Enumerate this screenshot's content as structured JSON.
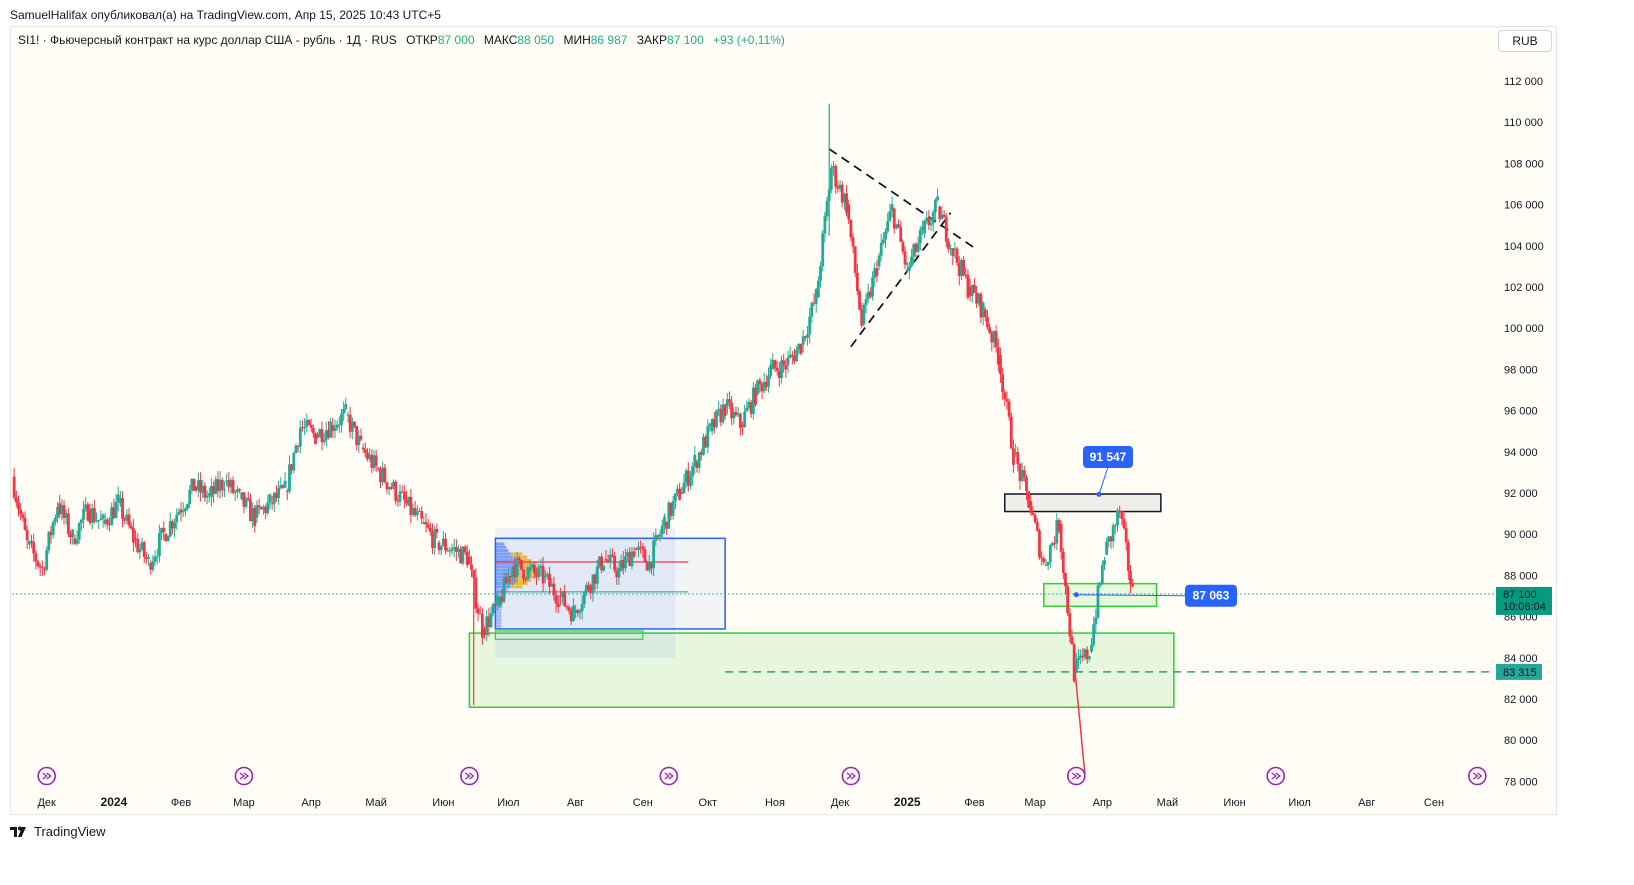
{
  "header": {
    "caption": "SamuelHalifax опубликовал(а) на TradingView.com, Апр 15, 2025 10:43 UTC+5"
  },
  "legend": {
    "symbol": "SI1! · Фьючерсный контракт на курс доллар США - рубль · 1Д · RUS",
    "open_label": "ОТКР",
    "open_value": "87 000",
    "high_label": "МАКС",
    "high_value": "88 050",
    "low_label": "МИН",
    "low_value": "86 987",
    "close_label": "ЗАКР",
    "close_value": "87 100",
    "change": "+93 (+0,11%)"
  },
  "currency": "RUB",
  "brand": "TradingView",
  "colors": {
    "up": "#22ab94",
    "down": "#f23645",
    "blue_label": "#2962ff",
    "green_zone": "#2fd12f",
    "dashed_level": "#2a9d8f"
  },
  "chart_data": {
    "type": "candlestick",
    "ylim": [
      77500,
      113000
    ],
    "y_ticks": [
      78000,
      80000,
      82000,
      84000,
      86000,
      88000,
      90000,
      92000,
      94000,
      96000,
      98000,
      100000,
      102000,
      104000,
      106000,
      108000,
      110000,
      112000
    ],
    "y_tick_labels": [
      "78 000",
      "80 000",
      "82 000",
      "84 000",
      "86 000",
      "88 000",
      "90 000",
      "92 000",
      "94 000",
      "96 000",
      "98 000",
      "100 000",
      "102 000",
      "104 000",
      "106 000",
      "108 000",
      "110 000",
      "112 000"
    ],
    "x_range": [
      "2023-11-15",
      "2025-09-30"
    ],
    "x_ticks": [
      {
        "date": "2023-12-01",
        "label": "Дек",
        "bold": false
      },
      {
        "date": "2024-01-01",
        "label": "2024",
        "bold": true
      },
      {
        "date": "2024-02-01",
        "label": "Фев",
        "bold": false
      },
      {
        "date": "2024-03-01",
        "label": "Мар",
        "bold": false
      },
      {
        "date": "2024-04-01",
        "label": "Апр",
        "bold": false
      },
      {
        "date": "2024-05-01",
        "label": "Май",
        "bold": false
      },
      {
        "date": "2024-06-01",
        "label": "Июн",
        "bold": false
      },
      {
        "date": "2024-07-01",
        "label": "Июл",
        "bold": false
      },
      {
        "date": "2024-08-01",
        "label": "Авг",
        "bold": false
      },
      {
        "date": "2024-09-01",
        "label": "Сен",
        "bold": false
      },
      {
        "date": "2024-10-01",
        "label": "Окт",
        "bold": false
      },
      {
        "date": "2024-11-01",
        "label": "Ноя",
        "bold": false
      },
      {
        "date": "2024-12-01",
        "label": "Дек",
        "bold": false
      },
      {
        "date": "2025-01-01",
        "label": "2025",
        "bold": true
      },
      {
        "date": "2025-02-01",
        "label": "Фев",
        "bold": false
      },
      {
        "date": "2025-03-01",
        "label": "Мар",
        "bold": false
      },
      {
        "date": "2025-04-01",
        "label": "Апр",
        "bold": false
      },
      {
        "date": "2025-05-01",
        "label": "Май",
        "bold": false
      },
      {
        "date": "2025-06-01",
        "label": "Июн",
        "bold": false
      },
      {
        "date": "2025-07-01",
        "label": "Июл",
        "bold": false
      },
      {
        "date": "2025-08-01",
        "label": "Авг",
        "bold": false
      },
      {
        "date": "2025-09-01",
        "label": "Сен",
        "bold": false
      }
    ],
    "price_path": [
      [
        "2023-11-15",
        92800
      ],
      [
        "2023-11-22",
        89500
      ],
      [
        "2023-11-29",
        88300
      ],
      [
        "2023-12-06",
        91500
      ],
      [
        "2023-12-13",
        89800
      ],
      [
        "2023-12-20",
        91200
      ],
      [
        "2023-12-27",
        90500
      ],
      [
        "2024-01-03",
        91500
      ],
      [
        "2024-01-10",
        89800
      ],
      [
        "2024-01-17",
        88600
      ],
      [
        "2024-01-24",
        90000
      ],
      [
        "2024-01-31",
        91200
      ],
      [
        "2024-02-07",
        92300
      ],
      [
        "2024-02-14",
        91800
      ],
      [
        "2024-02-21",
        92600
      ],
      [
        "2024-02-28",
        91700
      ],
      [
        "2024-03-06",
        90800
      ],
      [
        "2024-03-13",
        91500
      ],
      [
        "2024-03-20",
        92100
      ],
      [
        "2024-03-27",
        95200
      ],
      [
        "2024-04-03",
        94800
      ],
      [
        "2024-04-10",
        95300
      ],
      [
        "2024-04-17",
        95800
      ],
      [
        "2024-04-24",
        94200
      ],
      [
        "2024-05-01",
        93200
      ],
      [
        "2024-05-08",
        92300
      ],
      [
        "2024-05-15",
        91400
      ],
      [
        "2024-05-22",
        90500
      ],
      [
        "2024-05-29",
        89600
      ],
      [
        "2024-06-05",
        89300
      ],
      [
        "2024-06-12",
        88900
      ],
      [
        "2024-06-19",
        85400
      ],
      [
        "2024-06-26",
        86500
      ],
      [
        "2024-07-03",
        88500
      ],
      [
        "2024-07-10",
        88200
      ],
      [
        "2024-07-17",
        87900
      ],
      [
        "2024-07-24",
        87000
      ],
      [
        "2024-07-31",
        86200
      ],
      [
        "2024-08-07",
        87500
      ],
      [
        "2024-08-14",
        88800
      ],
      [
        "2024-08-21",
        88200
      ],
      [
        "2024-08-28",
        89300
      ],
      [
        "2024-09-04",
        88600
      ],
      [
        "2024-09-11",
        90600
      ],
      [
        "2024-09-18",
        92000
      ],
      [
        "2024-09-25",
        93500
      ],
      [
        "2024-10-02",
        95000
      ],
      [
        "2024-10-09",
        96200
      ],
      [
        "2024-10-16",
        95300
      ],
      [
        "2024-10-23",
        96800
      ],
      [
        "2024-10-30",
        98000
      ],
      [
        "2024-11-06",
        98200
      ],
      [
        "2024-11-13",
        99200
      ],
      [
        "2024-11-20",
        101500
      ],
      [
        "2024-11-27",
        107800
      ],
      [
        "2024-12-04",
        106000
      ],
      [
        "2024-12-11",
        100200
      ],
      [
        "2024-12-18",
        103000
      ],
      [
        "2024-12-25",
        105800
      ],
      [
        "2025-01-01",
        102800
      ],
      [
        "2025-01-08",
        104600
      ],
      [
        "2025-01-15",
        105900
      ],
      [
        "2025-01-22",
        103800
      ],
      [
        "2025-01-29",
        102000
      ],
      [
        "2025-02-05",
        100900
      ],
      [
        "2025-02-12",
        98700
      ],
      [
        "2025-02-19",
        93900
      ],
      [
        "2025-02-26",
        91600
      ],
      [
        "2025-03-05",
        88500
      ],
      [
        "2025-03-12",
        90500
      ],
      [
        "2025-03-19",
        83300
      ],
      [
        "2025-03-26",
        84300
      ],
      [
        "2025-04-02",
        89000
      ],
      [
        "2025-04-09",
        91100
      ],
      [
        "2025-04-15",
        87100
      ]
    ],
    "annotations": [
      {
        "label": "91 547",
        "price": 91547
      },
      {
        "label": "87 063",
        "price": 87063
      },
      {
        "label": "83 315",
        "price": 83315
      }
    ],
    "last_price": {
      "label": "87 100",
      "countdown": "10:06:04",
      "price": 87100
    }
  }
}
